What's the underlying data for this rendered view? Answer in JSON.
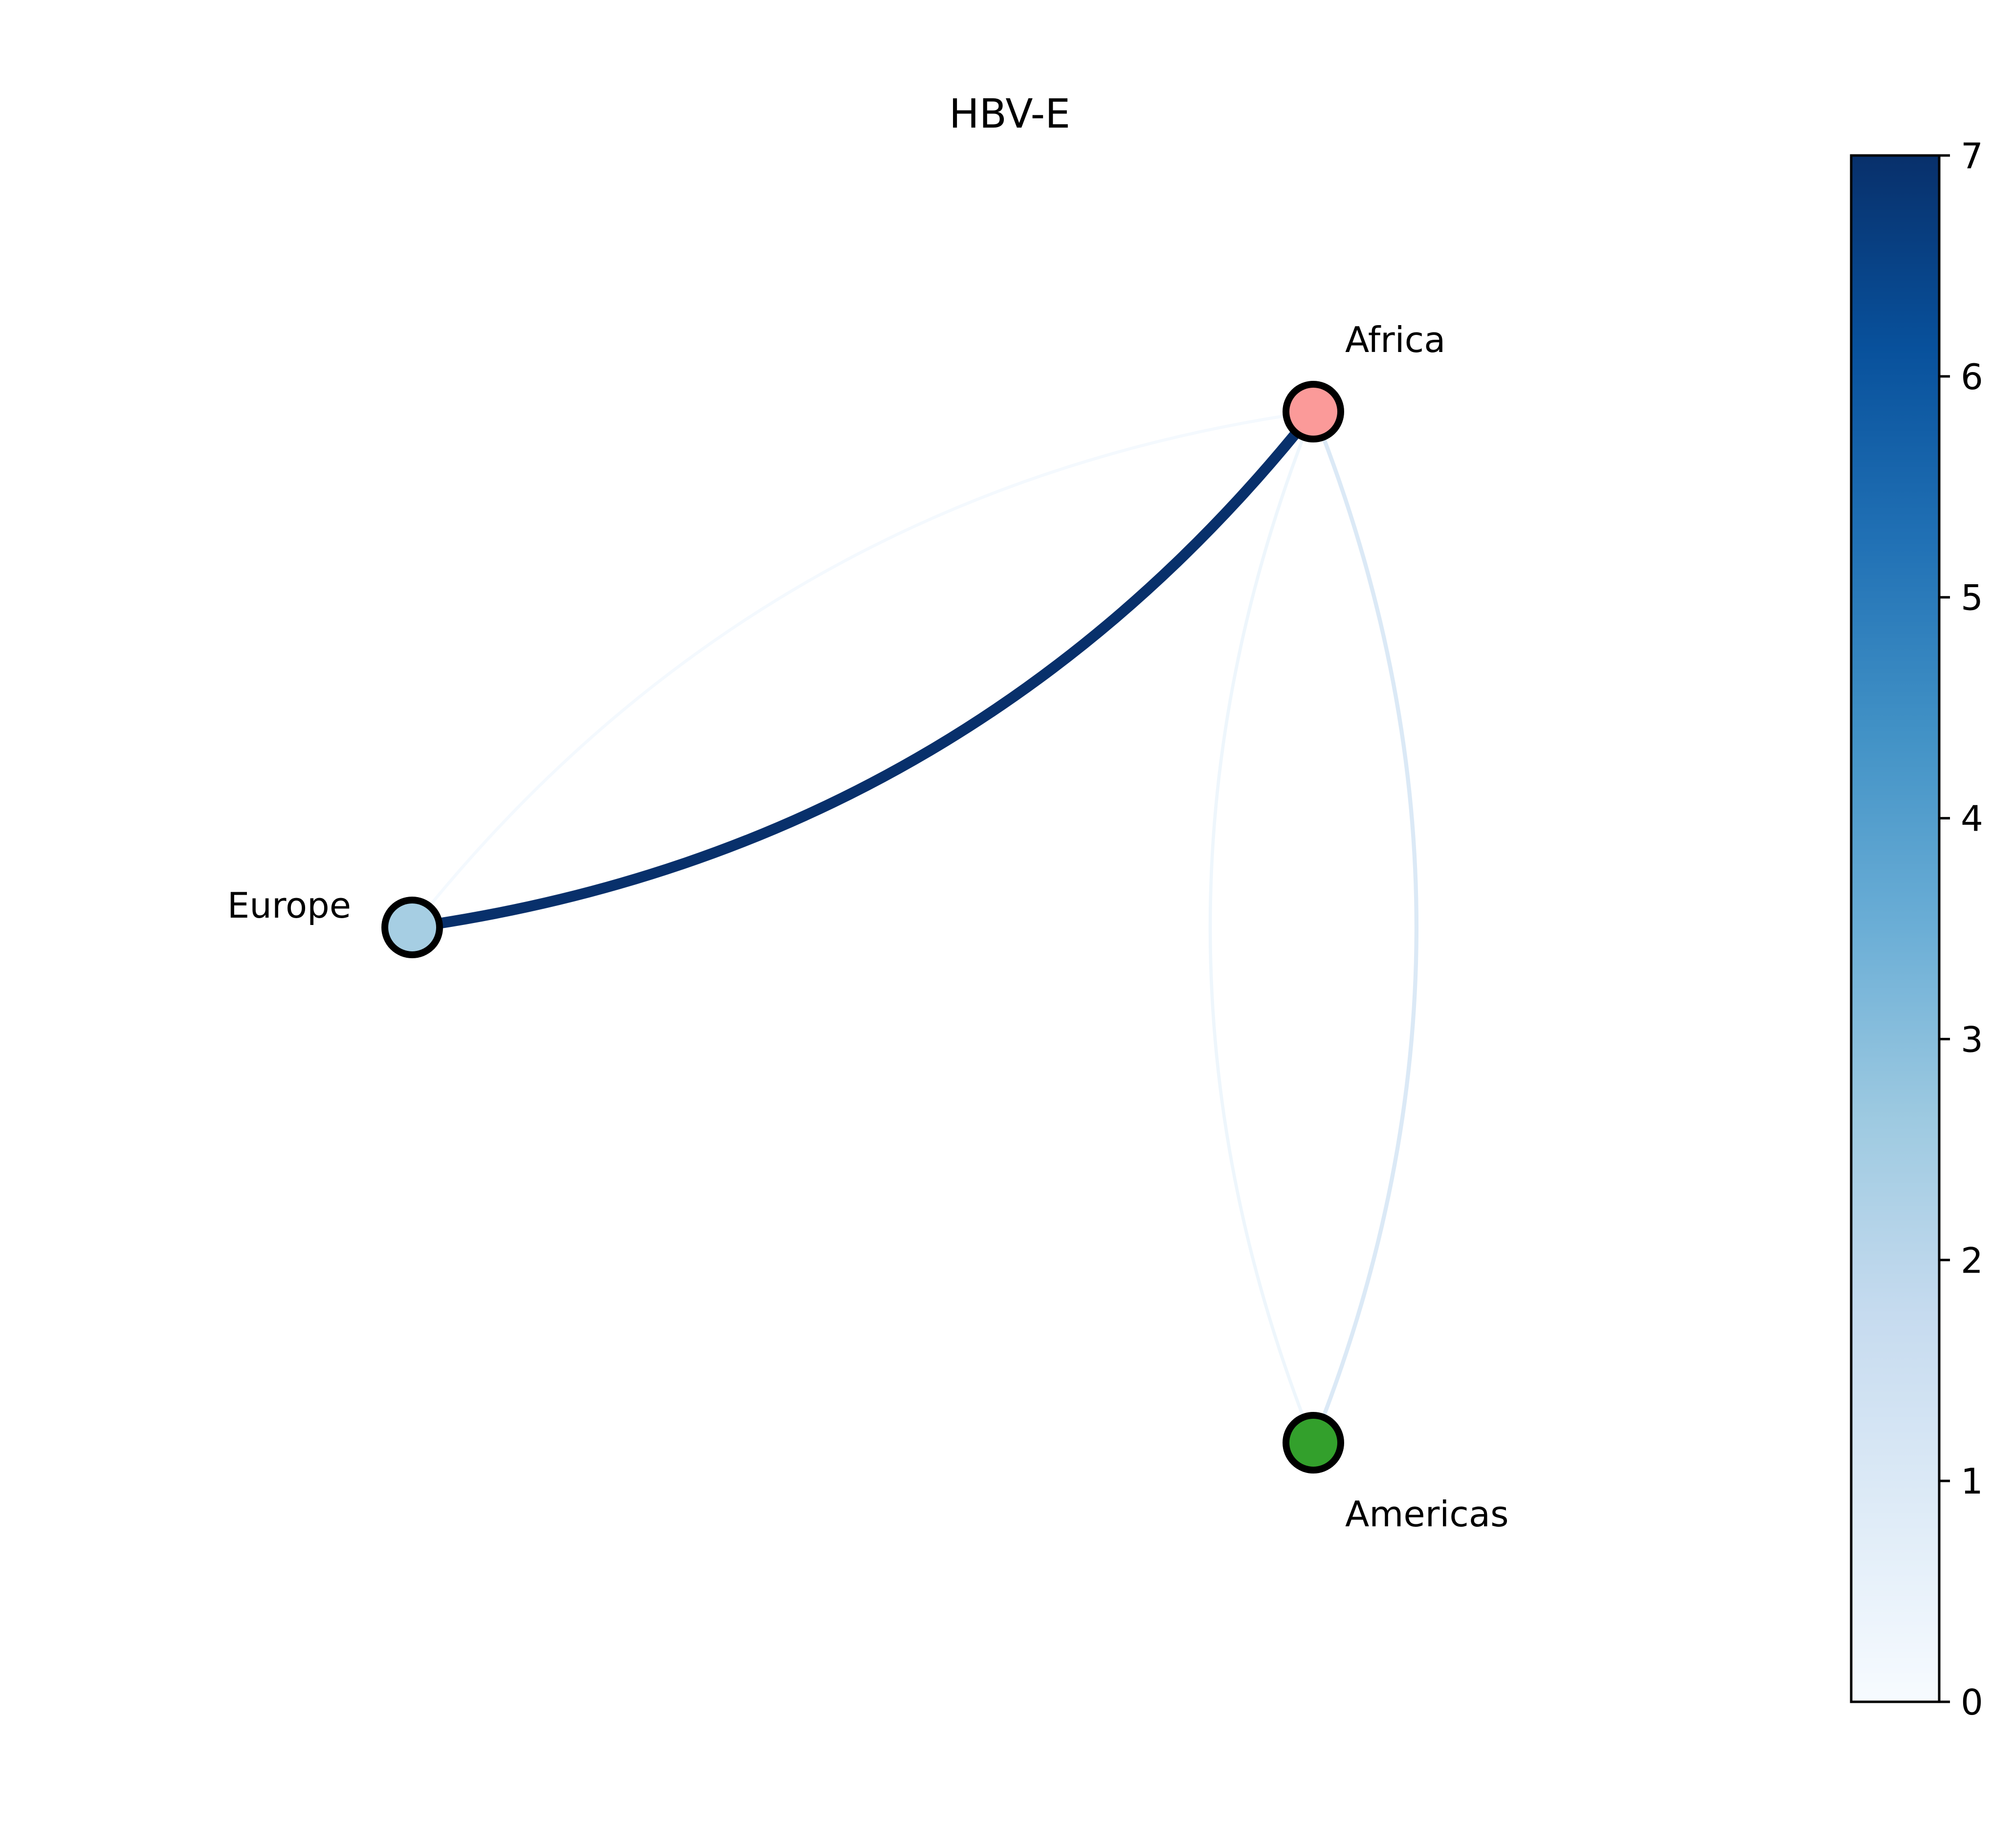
{
  "title": "HBV-E",
  "chart_data": {
    "type": "network",
    "title": "HBV-E",
    "nodes": [
      {
        "id": "africa",
        "label": "Africa",
        "color": "#fb9a99"
      },
      {
        "id": "europe",
        "label": "Europe",
        "color": "#a6cee3"
      },
      {
        "id": "americas",
        "label": "Americas",
        "color": "#33a02c"
      }
    ],
    "edges": [
      {
        "source": "europe",
        "target": "africa",
        "value": 7.0
      },
      {
        "source": "africa",
        "target": "europe",
        "value": 0.1
      },
      {
        "source": "americas",
        "target": "africa",
        "value": 1.0
      },
      {
        "source": "africa",
        "target": "americas",
        "value": 0.3
      }
    ],
    "colorbar": {
      "colormap": "Blues",
      "min": 0,
      "max": 7,
      "ticks": [
        0,
        1,
        2,
        3,
        4,
        5,
        6,
        7
      ]
    }
  }
}
